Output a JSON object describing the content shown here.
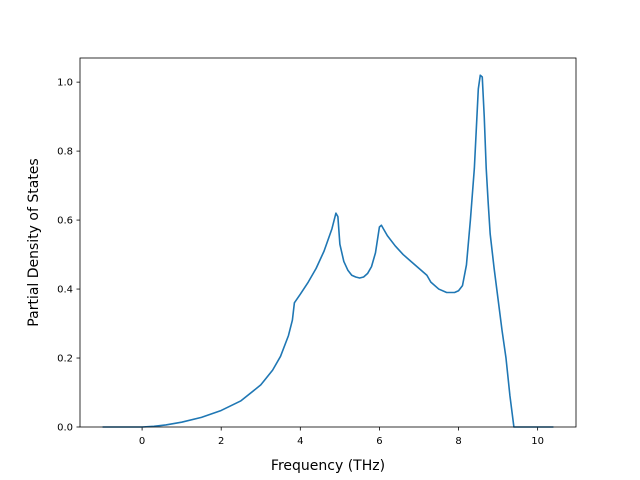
{
  "chart_data": {
    "type": "line",
    "title": "",
    "xlabel": "Frequency (THz)",
    "ylabel": "Partial Density of States",
    "xlim": [
      -1.57,
      10.97
    ],
    "ylim": [
      0.0,
      1.07
    ],
    "xticks": [
      0,
      2,
      4,
      6,
      8,
      10
    ],
    "xtick_labels": [
      "0",
      "2",
      "4",
      "6",
      "8",
      "10"
    ],
    "yticks": [
      0.0,
      0.2,
      0.4,
      0.6,
      0.8,
      1.0
    ],
    "ytick_labels": [
      "0.0",
      "0.2",
      "0.4",
      "0.6",
      "0.8",
      "1.0"
    ],
    "grid": false,
    "series": [
      {
        "color": "#1f77b4",
        "x": [
          -1.0,
          -0.5,
          0.0,
          0.3,
          0.6,
          1.0,
          1.5,
          2.0,
          2.5,
          3.0,
          3.3,
          3.5,
          3.7,
          3.8,
          3.85,
          4.0,
          4.2,
          4.4,
          4.6,
          4.8,
          4.9,
          4.95,
          5.0,
          5.1,
          5.2,
          5.3,
          5.4,
          5.5,
          5.6,
          5.7,
          5.8,
          5.9,
          6.0,
          6.05,
          6.1,
          6.2,
          6.4,
          6.6,
          6.8,
          7.0,
          7.2,
          7.3,
          7.5,
          7.7,
          7.9,
          8.0,
          8.1,
          8.2,
          8.3,
          8.4,
          8.5,
          8.55,
          8.6,
          8.65,
          8.7,
          8.75,
          8.8,
          8.9,
          9.0,
          9.1,
          9.2,
          9.3,
          9.4,
          9.45,
          9.5,
          10.0,
          10.4
        ],
        "y": [
          0.0,
          0.0,
          0.0,
          0.002,
          0.006,
          0.014,
          0.028,
          0.048,
          0.076,
          0.122,
          0.165,
          0.205,
          0.265,
          0.31,
          0.36,
          0.385,
          0.42,
          0.46,
          0.51,
          0.575,
          0.62,
          0.61,
          0.53,
          0.48,
          0.455,
          0.44,
          0.435,
          0.432,
          0.435,
          0.445,
          0.465,
          0.505,
          0.58,
          0.585,
          0.575,
          0.555,
          0.525,
          0.5,
          0.48,
          0.46,
          0.44,
          0.42,
          0.4,
          0.39,
          0.39,
          0.395,
          0.41,
          0.47,
          0.6,
          0.75,
          0.98,
          1.02,
          1.015,
          0.9,
          0.75,
          0.65,
          0.56,
          0.46,
          0.37,
          0.28,
          0.2,
          0.09,
          0.0,
          0.0,
          0.0,
          0.0,
          0.0
        ]
      }
    ]
  }
}
